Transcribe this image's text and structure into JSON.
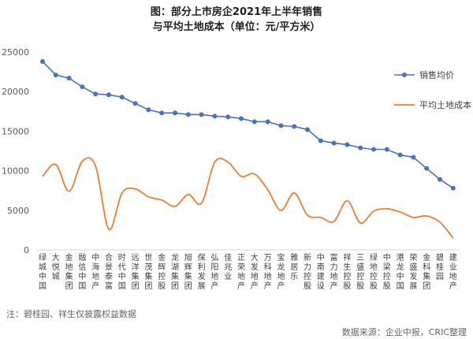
{
  "chart_data": {
    "type": "line",
    "title": "图：部分上市房企2021年上半年销售",
    "subtitle": "与平均土地成本（单位：元/平方米）",
    "categories": [
      "绿城中国",
      "大悦城",
      "金地集团",
      "融信中国",
      "中海地产",
      "合景泰富",
      "时代中国",
      "远洋集团",
      "世茂集团",
      "金辉控股",
      "龙湖集团",
      "旭辉集团",
      "保利发展",
      "弘阳地产",
      "佳兆业",
      "正荣地产",
      "大发地产",
      "万科地产",
      "宝龙地产",
      "雅居乐",
      "新力控股",
      "中南建设",
      "富力地产",
      "祥生控股",
      "三盛控股",
      "绿地控股",
      "中梁控股",
      "港龙中国",
      "荣盛发展",
      "金科集团",
      "碧桂园",
      "建业地产"
    ],
    "series": [
      {
        "name": "销售均价",
        "color": "#4472c4",
        "values": [
          23800,
          22100,
          21700,
          20600,
          19700,
          19600,
          19300,
          18500,
          17700,
          17300,
          17300,
          17100,
          17100,
          16900,
          16800,
          16600,
          16200,
          16200,
          15700,
          15600,
          15200,
          13800,
          13500,
          13300,
          12900,
          12700,
          12700,
          12000,
          11700,
          10300,
          8900,
          7800
        ]
      },
      {
        "name": "平均土地成本",
        "color": "#ed7d31",
        "values": [
          9300,
          10800,
          7400,
          11200,
          10600,
          2600,
          7200,
          7700,
          6700,
          6300,
          5500,
          7000,
          5900,
          11100,
          11100,
          9300,
          9600,
          7600,
          5000,
          7200,
          4400,
          4100,
          3600,
          6200,
          3400,
          4900,
          5200,
          4800,
          4100,
          4300,
          3500,
          1500
        ]
      }
    ],
    "ylim": [
      0,
      25000
    ],
    "yticks": [
      0,
      5000,
      10000,
      15000,
      20000,
      25000
    ],
    "legend_position": "right",
    "grid": false
  },
  "footer": {
    "note": "注：碧桂园、祥生仅披露权益数据",
    "source": "数据来源：企业中报，CRIC整理"
  }
}
